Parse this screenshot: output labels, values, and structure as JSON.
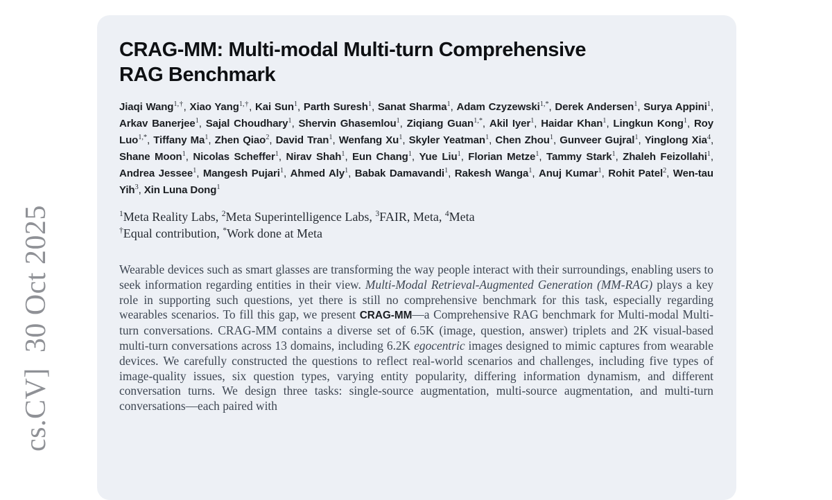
{
  "arxiv_sidebar": {
    "text": "cs.CV]  30 Oct 2025"
  },
  "paper": {
    "title": "CRAG-MM: Multi-modal Multi-turn Comprehensive RAG Benchmark",
    "title_lines": [
      "CRAG-MM: Multi-modal Multi-turn Comprehensive",
      "RAG Benchmark"
    ],
    "authors": [
      {
        "name": "Jiaqi Wang",
        "sup": "1,†"
      },
      {
        "name": "Xiao Yang",
        "sup": "1,†"
      },
      {
        "name": "Kai Sun",
        "sup": "1"
      },
      {
        "name": "Parth Suresh",
        "sup": "1"
      },
      {
        "name": "Sanat Sharma",
        "sup": "1"
      },
      {
        "name": "Adam Czyzewski",
        "sup": "1,*"
      },
      {
        "name": "Derek Andersen",
        "sup": "1"
      },
      {
        "name": "Surya Appini",
        "sup": "1"
      },
      {
        "name": "Arkav Banerjee",
        "sup": "1"
      },
      {
        "name": "Sajal Choudhary",
        "sup": "1"
      },
      {
        "name": "Shervin Ghasemlou",
        "sup": "1"
      },
      {
        "name": "Ziqiang Guan",
        "sup": "1,*"
      },
      {
        "name": "Akil Iyer",
        "sup": "1"
      },
      {
        "name": "Haidar Khan",
        "sup": "1"
      },
      {
        "name": "Lingkun Kong",
        "sup": "1"
      },
      {
        "name": "Roy Luo",
        "sup": "1,*"
      },
      {
        "name": "Tiffany Ma",
        "sup": "1"
      },
      {
        "name": "Zhen Qiao",
        "sup": "2"
      },
      {
        "name": "David Tran",
        "sup": "1"
      },
      {
        "name": "Wenfang Xu",
        "sup": "1"
      },
      {
        "name": "Skyler Yeatman",
        "sup": "1"
      },
      {
        "name": "Chen Zhou",
        "sup": "1"
      },
      {
        "name": "Gunveer Gujral",
        "sup": "1"
      },
      {
        "name": "Yinglong Xia",
        "sup": "4"
      },
      {
        "name": "Shane Moon",
        "sup": "1"
      },
      {
        "name": "Nicolas Scheffer",
        "sup": "1"
      },
      {
        "name": "Nirav Shah",
        "sup": "1"
      },
      {
        "name": "Eun Chang",
        "sup": "1"
      },
      {
        "name": "Yue Liu",
        "sup": "1"
      },
      {
        "name": "Florian Metze",
        "sup": "1"
      },
      {
        "name": "Tammy Stark",
        "sup": "1"
      },
      {
        "name": "Zhaleh Feizollahi",
        "sup": "1"
      },
      {
        "name": "Andrea Jessee",
        "sup": "1"
      },
      {
        "name": "Mangesh Pujari",
        "sup": "1"
      },
      {
        "name": "Ahmed Aly",
        "sup": "1"
      },
      {
        "name": "Babak Damavandi",
        "sup": "1"
      },
      {
        "name": "Rakesh Wanga",
        "sup": "1"
      },
      {
        "name": "Anuj Kumar",
        "sup": "1"
      },
      {
        "name": "Rohit Patel",
        "sup": "2"
      },
      {
        "name": "Wen-tau Yih",
        "sup": "3"
      },
      {
        "name": "Xin Luna Dong",
        "sup": "1"
      }
    ],
    "affiliations": [
      {
        "sup": "1",
        "text": "Meta Reality Labs, "
      },
      {
        "sup": "2",
        "text": "Meta Superintelligence Labs, "
      },
      {
        "sup": "3",
        "text": "FAIR, Meta, "
      },
      {
        "sup": "4",
        "text": "Meta"
      }
    ],
    "contribution_notes": [
      {
        "sup": "†",
        "text": "Equal contribution, "
      },
      {
        "sup": "*",
        "text": "Work done at Meta"
      }
    ],
    "abstract_segments": [
      {
        "style": "normal",
        "text": "Wearable devices such as smart glasses are transforming the way people interact with their surroundings, enabling users to seek information regarding entities in their view. "
      },
      {
        "style": "italic",
        "text": "Multi-Modal Retrieval-Augmented Generation (MM-RAG)"
      },
      {
        "style": "normal",
        "text": " plays a key role in supporting such questions, yet there is still no comprehensive benchmark for this task, especially regarding wearables scenarios. To fill this gap, we present "
      },
      {
        "style": "bold-sans",
        "text": "CRAG-MM"
      },
      {
        "style": "normal",
        "text": "—a Comprehensive RAG benchmark for Multi-modal Multi-turn conversations. CRAG-MM contains a diverse set of 6.5K (image, question, answer) triplets and 2K visual-based multi-turn conversations across 13 domains, including 6.2K "
      },
      {
        "style": "italic",
        "text": "egocentric"
      },
      {
        "style": "normal",
        "text": " images designed to mimic captures from wearable devices. We carefully constructed the questions to reflect real-world scenarios and challenges, including five types of image-quality issues, six question types, varying entity popularity, differing information dynamism, and different conversation turns. We design three tasks: single-source augmentation, multi-source augmentation, and multi-turn conversations—each paired with"
      }
    ]
  }
}
